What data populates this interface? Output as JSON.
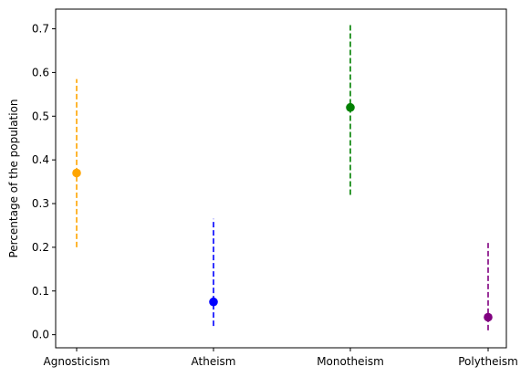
{
  "chart_data": {
    "type": "scatter",
    "title": "",
    "xlabel": "",
    "ylabel": "Percentage of the population",
    "ylim": [
      -0.03,
      0.745
    ],
    "yticks": [
      0.0,
      0.1,
      0.2,
      0.3,
      0.4,
      0.5,
      0.6,
      0.7
    ],
    "ytick_labels": [
      "0.0",
      "0.1",
      "0.2",
      "0.3",
      "0.4",
      "0.5",
      "0.6",
      "0.7"
    ],
    "categories": [
      "Agnosticism",
      "Atheism",
      "Monotheism",
      "Polytheism"
    ],
    "grid": false,
    "legend": "none",
    "points": [
      {
        "category": "Agnosticism",
        "value": 0.37,
        "low": 0.2,
        "high": 0.585,
        "color": "#ffa500"
      },
      {
        "category": "Atheism",
        "value": 0.075,
        "low": 0.02,
        "high": 0.265,
        "color": "#0000ff"
      },
      {
        "category": "Monotheism",
        "value": 0.52,
        "low": 0.32,
        "high": 0.71,
        "color": "#008000"
      },
      {
        "category": "Polytheism",
        "value": 0.04,
        "low": 0.01,
        "high": 0.21,
        "color": "#800080"
      }
    ]
  }
}
